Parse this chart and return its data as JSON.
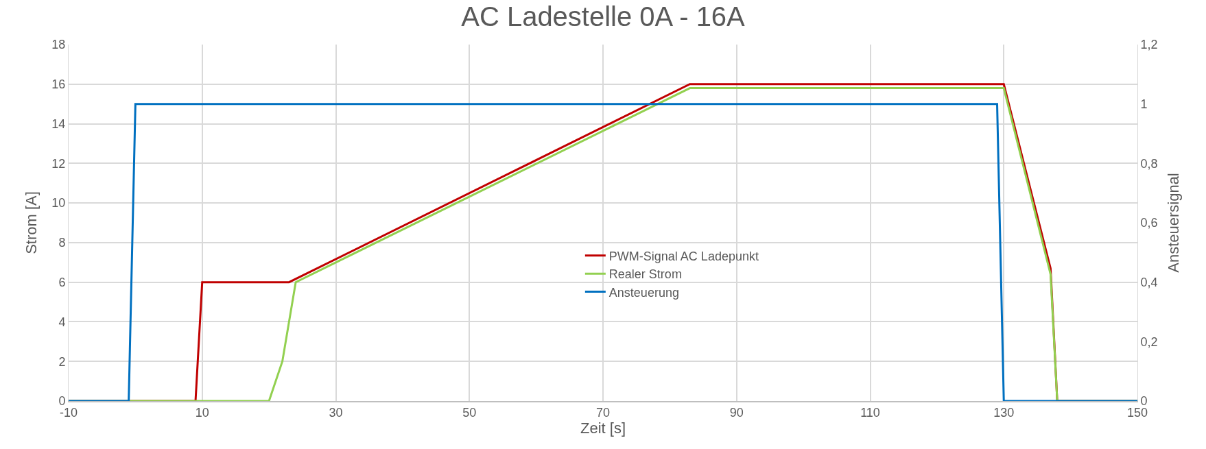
{
  "chart_data": {
    "type": "line",
    "title": "AC Ladestelle 0A - 16A",
    "xlabel": "Zeit [s]",
    "ylabel": "Strom [A]",
    "y2label": "Ansteuersignal",
    "xlim": [
      -10,
      150
    ],
    "xticks": [
      -10,
      10,
      30,
      50,
      70,
      90,
      110,
      130,
      150
    ],
    "ylim": [
      0,
      18
    ],
    "yticks": [
      0,
      2,
      4,
      6,
      8,
      10,
      12,
      14,
      16,
      18
    ],
    "y2lim": [
      0,
      1.2
    ],
    "y2ticks": [
      0,
      {
        "value": 0.2,
        "label": "0,2"
      },
      {
        "value": 0.4,
        "label": "0,4"
      },
      {
        "value": 0.6,
        "label": "0,6"
      },
      {
        "value": 0.8,
        "label": "0,8"
      },
      1,
      {
        "value": 1.2,
        "label": "1,2"
      }
    ],
    "grid": true,
    "legend": "center",
    "marker": "none",
    "line_style": "solid",
    "series": [
      {
        "name": "PWM-Signal AC Ladepunkt",
        "color": "#c00000",
        "x": [
          -10,
          9,
          10,
          23,
          83,
          130,
          137,
          138,
          150
        ],
        "values": [
          0,
          0,
          6,
          6,
          16,
          16,
          6.7,
          0,
          0
        ]
      },
      {
        "name": "Realer Strom",
        "color": "#92d050",
        "x": [
          -10,
          20,
          22,
          24,
          83,
          130,
          137,
          138,
          150
        ],
        "values": [
          0,
          0,
          2,
          6,
          15.8,
          15.8,
          6.4,
          0,
          0
        ]
      },
      {
        "name": "Ansteuerung",
        "color": "#0070c0",
        "axis": "y2",
        "x": [
          -10,
          -1,
          0,
          129,
          130,
          150
        ],
        "values": [
          0,
          0,
          1,
          1,
          0,
          0
        ]
      }
    ]
  }
}
